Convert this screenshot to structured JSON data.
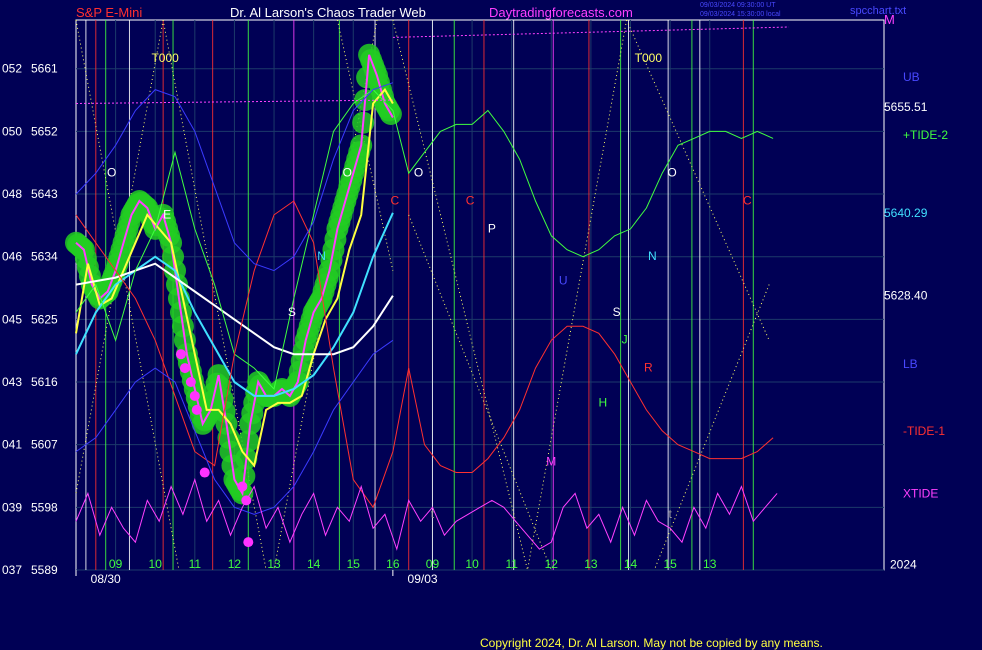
{
  "header": {
    "symbol": "S&P E-Mini",
    "author": "Dr. Al Larson's Chaos Trader Web",
    "site": "Daytradingforecasts.com",
    "stamp_line1": "09/03/2024 09:30:00 UT",
    "stamp_line2": "09/03/2024 15:30:00 local",
    "settings_file": "spcchart.txt",
    "corner_letter": "M"
  },
  "footer": {
    "copyright": "Copyright 2024, Dr. Al Larson. May not be copied by any means."
  },
  "right_labels": [
    {
      "text": "UB",
      "y_value": 5659.8,
      "color": "#4848ff"
    },
    {
      "text": "5655.51",
      "y_value": 5655.51,
      "color": "#ffffff"
    },
    {
      "text": "+TIDE-2",
      "y_value": 5651.5,
      "color": "#40ff40"
    },
    {
      "text": "5640.29",
      "y_value": 5640.29,
      "color": "#40e0ff"
    },
    {
      "text": "5628.40",
      "y_value": 5628.4,
      "color": "#ffffff"
    },
    {
      "text": "LB",
      "y_value": 5618.6,
      "color": "#4848ff"
    },
    {
      "text": "-TIDE-1",
      "y_value": 5609.0,
      "color": "#ff3030"
    },
    {
      "text": "XTIDE",
      "y_value": 5600.0,
      "color": "#ff40ff"
    },
    {
      "text": "2024",
      "y_value": 5589.8,
      "color": "#ffffff"
    }
  ],
  "chart_data": {
    "type": "line",
    "ylim": [
      5589,
      5668
    ],
    "xlim": [
      0,
      20.4
    ],
    "y_ticks": [
      {
        "left": "037",
        "value": 5589
      },
      {
        "left": "039",
        "value": 5598
      },
      {
        "left": "041",
        "value": 5607
      },
      {
        "left": "043",
        "value": 5616
      },
      {
        "left": "045",
        "value": 5625
      },
      {
        "left": "046",
        "value": 5634
      },
      {
        "left": "048",
        "value": 5643
      },
      {
        "left": "050",
        "value": 5652
      },
      {
        "left": "052",
        "value": 5661
      }
    ],
    "hour_ticks": [
      {
        "label": "09",
        "x": 1.0
      },
      {
        "label": "10",
        "x": 2.0
      },
      {
        "label": "11",
        "x": 3.0
      },
      {
        "label": "12",
        "x": 4.0
      },
      {
        "label": "13",
        "x": 5.0
      },
      {
        "label": "14",
        "x": 6.0
      },
      {
        "label": "15",
        "x": 7.0
      },
      {
        "label": "16",
        "x": 8.0
      },
      {
        "label": "09",
        "x": 9.0
      },
      {
        "label": "10",
        "x": 10.0
      },
      {
        "label": "11",
        "x": 11.0
      },
      {
        "label": "12",
        "x": 12.0
      },
      {
        "label": "13",
        "x": 13.0
      },
      {
        "label": "14",
        "x": 14.0
      },
      {
        "label": "15",
        "x": 15.0
      },
      {
        "label": "13",
        "x": 16.0
      }
    ],
    "date_ticks": [
      {
        "label": "08/30",
        "x": 0.8
      },
      {
        "label": "09/03",
        "x": 8.8
      }
    ],
    "vertical_lines": [
      {
        "x": 0.25,
        "color": "#ffffff"
      },
      {
        "x": 0.5,
        "color": "#ff3030"
      },
      {
        "x": 0.75,
        "color": "#40ff40"
      },
      {
        "x": 1.35,
        "color": "#ffffff"
      },
      {
        "x": 2.2,
        "color": "#ff3030"
      },
      {
        "x": 2.45,
        "color": "#40ff40"
      },
      {
        "x": 3.45,
        "color": "#ff3030"
      },
      {
        "x": 4.35,
        "color": "#40ff40"
      },
      {
        "x": 5.5,
        "color": "#ff40ff"
      },
      {
        "x": 6.65,
        "color": "#40ff40"
      },
      {
        "x": 7.55,
        "color": "#ffffff"
      },
      {
        "x": 8.4,
        "color": "#ff3030"
      },
      {
        "x": 9.0,
        "color": "#ffffff"
      },
      {
        "x": 9.55,
        "color": "#40ff40"
      },
      {
        "x": 10.3,
        "color": "#ff3030"
      },
      {
        "x": 11.05,
        "color": "#ffffff"
      },
      {
        "x": 12.05,
        "color": "#ff40ff"
      },
      {
        "x": 12.95,
        "color": "#ff3030"
      },
      {
        "x": 13.75,
        "color": "#40ff40"
      },
      {
        "x": 13.95,
        "color": "#ffffff"
      },
      {
        "x": 14.95,
        "color": "#ffffff"
      },
      {
        "x": 15.55,
        "color": "#40ff40"
      },
      {
        "x": 15.75,
        "color": "#ffffff"
      },
      {
        "x": 16.85,
        "color": "#ff3030"
      },
      {
        "x": 17.1,
        "color": "#40ff40"
      }
    ],
    "letters": [
      {
        "t": "T000",
        "x": 2.25,
        "y": 5662.0,
        "color": "#ffff66"
      },
      {
        "t": "T000",
        "x": 14.45,
        "y": 5662.0,
        "color": "#ffff66"
      },
      {
        "t": "O",
        "x": 0.9,
        "y": 5645.5,
        "color": "#ffffff"
      },
      {
        "t": "O",
        "x": 6.85,
        "y": 5645.5,
        "color": "#ffffff"
      },
      {
        "t": "O",
        "x": 8.65,
        "y": 5645.5,
        "color": "#ffffff"
      },
      {
        "t": "O",
        "x": 15.05,
        "y": 5645.5,
        "color": "#ffffff"
      },
      {
        "t": "C",
        "x": 8.05,
        "y": 5641.5,
        "color": "#ff3030"
      },
      {
        "t": "C",
        "x": 9.95,
        "y": 5641.5,
        "color": "#ff3030"
      },
      {
        "t": "C",
        "x": 16.95,
        "y": 5641.5,
        "color": "#ff3030"
      },
      {
        "t": "P",
        "x": 10.5,
        "y": 5637.5,
        "color": "#ffffff"
      },
      {
        "t": "N",
        "x": 6.2,
        "y": 5633.5,
        "color": "#40e0ff"
      },
      {
        "t": "N",
        "x": 14.55,
        "y": 5633.5,
        "color": "#40e0ff"
      },
      {
        "t": "S",
        "x": 5.45,
        "y": 5625.5,
        "color": "#ffffff"
      },
      {
        "t": "S",
        "x": 13.65,
        "y": 5625.5,
        "color": "#ffffff"
      },
      {
        "t": "J",
        "x": 13.85,
        "y": 5621.5,
        "color": "#40ff40"
      },
      {
        "t": "R",
        "x": 14.45,
        "y": 5617.5,
        "color": "#ff3030"
      },
      {
        "t": "H",
        "x": 13.3,
        "y": 5612.5,
        "color": "#40ff40"
      },
      {
        "t": "M",
        "x": 12.0,
        "y": 5604.0,
        "color": "#ff40ff"
      },
      {
        "t": "U",
        "x": 12.3,
        "y": 5630.0,
        "color": "#4848ff"
      },
      {
        "t": "E",
        "x": 2.3,
        "y": 5639.5,
        "color": "#ffffff"
      },
      {
        "t": "t",
        "x": 9.0,
        "y": 5596.5,
        "color": "#a0a0a0"
      },
      {
        "t": "t",
        "x": 15.0,
        "y": 5596.5,
        "color": "#a0a0a0"
      }
    ],
    "series": [
      {
        "name": "price",
        "color": "#ff40ff",
        "x": [
          0.0,
          0.2,
          0.4,
          0.6,
          0.8,
          1.0,
          1.2,
          1.4,
          1.6,
          1.8,
          2.0,
          2.2,
          2.4,
          2.6,
          2.8,
          3.0,
          3.2,
          3.4,
          3.6,
          3.8,
          4.0,
          4.2,
          4.4,
          4.6,
          4.8,
          5.0,
          5.2,
          5.4,
          5.6,
          5.8,
          6.0,
          6.2,
          6.4,
          6.6,
          6.8,
          7.0,
          7.2,
          7.4,
          7.6,
          7.8,
          8.0
        ],
        "values": [
          5636,
          5635,
          5630,
          5628,
          5629,
          5632,
          5636,
          5640,
          5642,
          5641,
          5638,
          5640,
          5636,
          5628,
          5620,
          5615,
          5610,
          5612,
          5617,
          5610,
          5602,
          5600,
          5610,
          5616,
          5614,
          5614,
          5615,
          5614,
          5616,
          5622,
          5626,
          5628,
          5632,
          5638,
          5642,
          5646,
          5650,
          5663,
          5660,
          5656,
          5654
        ]
      },
      {
        "name": "yellow",
        "color": "#ffff40",
        "x": [
          0.0,
          0.3,
          0.6,
          0.9,
          1.2,
          1.5,
          1.8,
          2.1,
          2.4,
          2.7,
          3.0,
          3.3,
          3.6,
          3.9,
          4.2,
          4.5,
          4.8,
          5.1,
          5.4,
          5.7,
          6.0,
          6.3,
          6.6,
          6.9,
          7.2,
          7.5,
          7.8,
          8.0
        ],
        "values": [
          5623,
          5633,
          5627,
          5628,
          5632,
          5636,
          5640,
          5638,
          5636,
          5628,
          5620,
          5612,
          5612,
          5610,
          5606,
          5604,
          5612,
          5613,
          5613,
          5614,
          5620,
          5625,
          5628,
          5635,
          5640,
          5656,
          5658,
          5656
        ]
      },
      {
        "name": "cyan",
        "color": "#40e0ff",
        "x": [
          0.0,
          0.5,
          1.0,
          1.5,
          2.0,
          2.5,
          3.0,
          3.5,
          4.0,
          4.5,
          5.0,
          5.5,
          6.0,
          6.5,
          7.0,
          7.5,
          8.0
        ],
        "values": [
          5620,
          5626,
          5630,
          5632,
          5634,
          5632,
          5626,
          5621,
          5616,
          5614,
          5614,
          5615,
          5617,
          5621,
          5626,
          5634,
          5640.3
        ]
      },
      {
        "name": "white",
        "color": "#ffffff",
        "x": [
          0.0,
          0.5,
          1.0,
          1.5,
          2.0,
          2.5,
          3.0,
          3.5,
          4.0,
          4.5,
          5.0,
          5.5,
          6.0,
          6.5,
          7.0,
          7.5,
          8.0
        ],
        "values": [
          5630,
          5630.5,
          5631,
          5632,
          5633,
          5631,
          5629,
          5627,
          5625,
          5623,
          5621,
          5620,
          5620,
          5620,
          5621,
          5624,
          5628.4
        ]
      },
      {
        "name": "+TIDE-2",
        "color": "#40ff40",
        "x": [
          0.0,
          0.5,
          1.0,
          1.5,
          2.0,
          2.5,
          3.0,
          3.5,
          4.0,
          4.5,
          5.0,
          5.5,
          6.0,
          6.5,
          7.0,
          7.5,
          8.0,
          8.4,
          8.8,
          9.2,
          9.6,
          10.0,
          10.4,
          10.8,
          11.2,
          11.6,
          12.0,
          12.4,
          12.8,
          13.2,
          13.6,
          14.0,
          14.4,
          14.8,
          15.2,
          15.6,
          16.0,
          16.4,
          16.8,
          17.2,
          17.6
        ],
        "values": [
          5626,
          5630,
          5622,
          5632,
          5638,
          5649,
          5638,
          5630,
          5620,
          5618,
          5615,
          5628,
          5640,
          5652,
          5656,
          5658,
          5655,
          5646,
          5649,
          5652,
          5653,
          5653,
          5655,
          5652,
          5648,
          5642,
          5637,
          5635,
          5634,
          5635,
          5637,
          5638,
          5641,
          5646,
          5650,
          5651,
          5652,
          5652,
          5651,
          5652,
          5651
        ]
      },
      {
        "name": "-TIDE-1",
        "color": "#ff3030",
        "x": [
          0.0,
          0.5,
          1.0,
          1.5,
          2.0,
          2.5,
          3.0,
          3.5,
          4.0,
          4.5,
          5.0,
          5.5,
          6.0,
          6.5,
          7.0,
          7.5,
          8.0,
          8.4,
          8.8,
          9.2,
          9.6,
          10.0,
          10.4,
          10.8,
          11.2,
          11.6,
          12.0,
          12.4,
          12.8,
          13.2,
          13.6,
          14.0,
          14.4,
          14.8,
          15.2,
          15.6,
          16.0,
          16.4,
          16.8,
          17.2,
          17.6
        ],
        "values": [
          5640,
          5636,
          5632,
          5628,
          5622,
          5614,
          5606,
          5604,
          5620,
          5632,
          5640,
          5642,
          5636,
          5618,
          5602,
          5598,
          5606,
          5618,
          5607,
          5604,
          5603,
          5603,
          5605,
          5608,
          5612,
          5618,
          5622,
          5624,
          5624,
          5623,
          5620,
          5616,
          5612,
          5609,
          5607,
          5606,
          5605,
          5605,
          5605,
          5606,
          5608
        ]
      },
      {
        "name": "UB",
        "color": "#3a3aff",
        "x": [
          0.0,
          0.5,
          1.0,
          1.5,
          2.0,
          2.5,
          3.0,
          3.5,
          4.0,
          4.5,
          5.0,
          5.5,
          6.0,
          6.5,
          7.0,
          7.5,
          8.0
        ],
        "values": [
          5643,
          5646,
          5650,
          5655,
          5658,
          5657,
          5652,
          5644,
          5636,
          5633,
          5632,
          5634,
          5639,
          5648,
          5655,
          5658,
          5659
        ]
      },
      {
        "name": "LB",
        "color": "#3a3aff",
        "x": [
          0.0,
          0.5,
          1.0,
          1.5,
          2.0,
          2.5,
          3.0,
          3.5,
          4.0,
          4.5,
          5.0,
          5.5,
          6.0,
          6.5,
          7.0,
          7.5,
          8.0
        ],
        "values": [
          5606,
          5608,
          5612,
          5616,
          5618,
          5616,
          5609,
          5602,
          5598,
          5597,
          5598,
          5601,
          5606,
          5612,
          5616,
          5620,
          5622
        ]
      },
      {
        "name": "XTIDE",
        "color": "#ff40ff",
        "x": [
          0.0,
          0.3,
          0.6,
          0.9,
          1.2,
          1.5,
          1.8,
          2.1,
          2.4,
          2.7,
          3.0,
          3.3,
          3.6,
          3.9,
          4.2,
          4.5,
          4.8,
          5.1,
          5.4,
          5.7,
          6.0,
          6.3,
          6.6,
          6.9,
          7.2,
          7.5,
          7.8,
          8.1,
          8.4,
          8.7,
          9.0,
          9.3,
          9.6,
          9.9,
          10.2,
          10.5,
          10.8,
          11.1,
          11.4,
          11.7,
          12.0,
          12.3,
          12.6,
          12.9,
          13.2,
          13.5,
          13.8,
          14.1,
          14.4,
          14.7,
          15.0,
          15.3,
          15.6,
          15.9,
          16.2,
          16.5,
          16.8,
          17.1,
          17.4,
          17.7
        ],
        "values": [
          5596,
          5600,
          5594,
          5598,
          5595,
          5593,
          5599,
          5596,
          5601,
          5597,
          5602,
          5596,
          5599,
          5594,
          5598,
          5601,
          5595,
          5598,
          5593,
          5597,
          5600,
          5594,
          5598,
          5596,
          5601,
          5595,
          5597,
          5592,
          5599,
          5596,
          5598,
          5594,
          5596,
          5597,
          5598,
          5599,
          5598,
          5596,
          5594,
          5592,
          5593,
          5598,
          5600,
          5595,
          5597,
          5593,
          5598,
          5594,
          5599,
          5596,
          5595,
          5593,
          5598,
          5595,
          5600,
          5597,
          5601,
          5596,
          5598,
          5600
        ]
      },
      {
        "name": "magenta-top",
        "color": "#ff40ff",
        "x": [
          0.0,
          8.0
        ],
        "values": [
          5656,
          5656.5
        ]
      },
      {
        "name": "magenta-top-2",
        "color": "#ff40ff",
        "x": [
          8.0,
          18.0
        ],
        "values": [
          5665.5,
          5667
        ]
      }
    ],
    "crossing_lines": [
      {
        "x0": 0.0,
        "y0": 5668,
        "x1": 2.6,
        "y1": 5589,
        "color": "#ffff66"
      },
      {
        "x0": 2.2,
        "y0": 5668,
        "x1": 0.0,
        "y1": 5600,
        "color": "#ffff66"
      },
      {
        "x0": 2.2,
        "y0": 5668,
        "x1": 4.8,
        "y1": 5589,
        "color": "#ffff66"
      },
      {
        "x0": 6.6,
        "y0": 5668,
        "x1": 8.0,
        "y1": 5632,
        "color": "#ffff66"
      },
      {
        "x0": 7.6,
        "y0": 5668,
        "x1": 5.0,
        "y1": 5589,
        "color": "#ffff66"
      },
      {
        "x0": 8.0,
        "y0": 5668,
        "x1": 11.4,
        "y1": 5589,
        "color": "#ffff66"
      },
      {
        "x0": 8.4,
        "y0": 5640,
        "x1": 12.0,
        "y1": 5589,
        "color": "#ffff66"
      },
      {
        "x0": 13.9,
        "y0": 5668,
        "x1": 11.4,
        "y1": 5589,
        "color": "#ffff66"
      },
      {
        "x0": 13.9,
        "y0": 5668,
        "x1": 17.5,
        "y1": 5622,
        "color": "#ffff66"
      },
      {
        "x0": 17.5,
        "y0": 5630,
        "x1": 14.6,
        "y1": 5589,
        "color": "#ffff66"
      }
    ],
    "highlight_dots": [
      {
        "x": 2.65,
        "y": 5620
      },
      {
        "x": 2.75,
        "y": 5618
      },
      {
        "x": 2.9,
        "y": 5616
      },
      {
        "x": 3.0,
        "y": 5614
      },
      {
        "x": 3.05,
        "y": 5612
      },
      {
        "x": 3.25,
        "y": 5603
      },
      {
        "x": 4.2,
        "y": 5601
      },
      {
        "x": 4.3,
        "y": 5599
      },
      {
        "x": 4.35,
        "y": 5593
      }
    ]
  }
}
